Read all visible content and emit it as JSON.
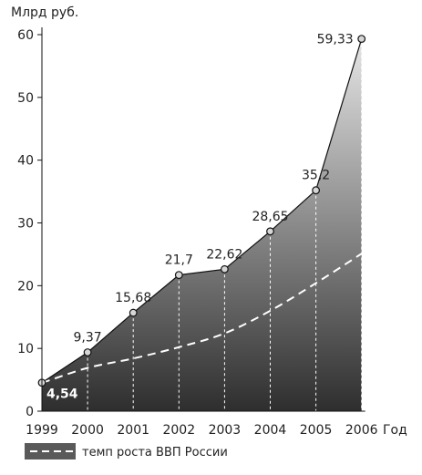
{
  "chart_data": {
    "type": "area",
    "ylabel": "Млрд руб.",
    "xlabel": "Год",
    "x": [
      "1999",
      "2000",
      "2001",
      "2002",
      "2003",
      "2004",
      "2005",
      "2006"
    ],
    "ylim": [
      0,
      60
    ],
    "yticks": [
      0,
      10,
      20,
      30,
      40,
      50,
      60
    ],
    "series": [
      {
        "values": [
          4.54,
          9.37,
          15.68,
          21.7,
          22.62,
          28.65,
          35.2,
          59.33
        ],
        "data_labels": [
          "4,54",
          "9,37",
          "15,68",
          "21,7",
          "22,62",
          "28,65",
          "35,2",
          "59,33"
        ]
      },
      {
        "name": "темп роста ВВП России",
        "style": "dashed",
        "values": [
          4.5,
          6.9,
          8.4,
          10.2,
          12.4,
          16.0,
          20.4,
          25.1
        ]
      }
    ],
    "grid": false,
    "legend_position": "bottom-left",
    "colors": {
      "area_top": "#e6e6e6",
      "area_bottom": "#2e2e2e",
      "line": "#111111",
      "dash_line": "#ffffff",
      "marker_fill": "#d6d6d6",
      "legend_box": "#5a5a5a"
    }
  }
}
